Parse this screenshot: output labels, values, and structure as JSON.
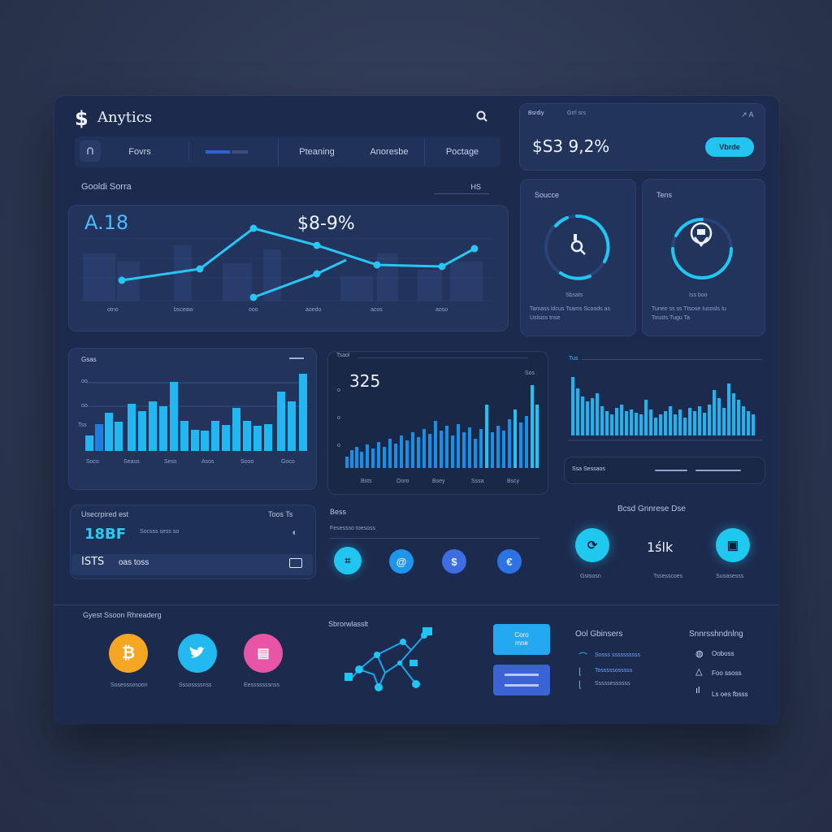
{
  "app": {
    "title": "Anytics"
  },
  "nav": {
    "items": [
      "Fovrs",
      "Pteaning",
      "Anoresbe",
      "Poctage"
    ]
  },
  "top_right": {
    "tab1": "Bsrdiy",
    "tab2": "Grrl srs",
    "value": "$S3 9,2%",
    "button": "Vbrde"
  },
  "overview": {
    "title": "Gooldi Sorra",
    "pill": "HS",
    "big_value": "A.18",
    "mid_value": "$8-9%",
    "x_labels": [
      "otno",
      "bsceaw",
      "ooo",
      "aoedo",
      "acos",
      "aoso"
    ]
  },
  "card_sources": {
    "title": "Soucce",
    "label": "Sbsats",
    "desc": [
      "Tamass ldcus Tsams Scoods as",
      "Uslsiss tnse"
    ]
  },
  "card_tens": {
    "title": "Tens",
    "label": "Iss boo",
    "desc": [
      "Tunee ss ss Ttsose Iusosls Iu",
      "Tousts Tugu Ta"
    ]
  },
  "bar_left": {
    "title": "Gsas",
    "y_labels": [
      "oo",
      "oo",
      "Tss"
    ],
    "x_labels": [
      "Soco",
      "Seaus",
      "Sess",
      "Asos",
      "Sooo",
      "Goco"
    ]
  },
  "bar_mid": {
    "header": "Tsaol",
    "value": "325",
    "badge": "Sos",
    "x_labels": [
      "Bsts",
      "Ooro",
      "Bsey",
      "Sssa",
      "Bscy"
    ]
  },
  "bar_right": {
    "header": "Tus",
    "footer": "Ssa Sessaos"
  },
  "stat_box": {
    "title": "Usecrpired est",
    "right": "Toos Ts",
    "value": "18BF",
    "value_caption": "Socsss sess so",
    "row_value": "ISTS",
    "row_caption": "oas toss"
  },
  "mini": {
    "title": "Bess",
    "caption": "Fesessso toesoss"
  },
  "right_stats": {
    "title": "Bcsd Gnnrese Dse",
    "value": "1ślk",
    "labels": [
      "Gstsosn",
      "Tssesscoes",
      "Suoasesss"
    ]
  },
  "bottom": {
    "social_title": "Gyest Ssoon Rhreaderg",
    "social_labels": [
      "Sosesssosoon",
      "Sssossssnss",
      "Eesssssssnss"
    ],
    "network_title": "Sbrorwlasslt",
    "btn1": "Coro\nrnne",
    "col1_title": "Ool Gbinsers",
    "col1_items": [
      "Sosss ssssssssss",
      "Tosssssosssss",
      "Sssssessssss"
    ],
    "col2_title": "Snnrsshndnlng",
    "col2_items": [
      "Ooboss",
      "Foo ssoss",
      "Ls oes fbsss"
    ]
  },
  "colors": {
    "accent": "#2fc8f0",
    "panel": "#1c2a4e",
    "card": "#22335c",
    "orange": "#f5a623",
    "pink": "#e855a6",
    "blue_btn": "#3b6fe0"
  }
}
